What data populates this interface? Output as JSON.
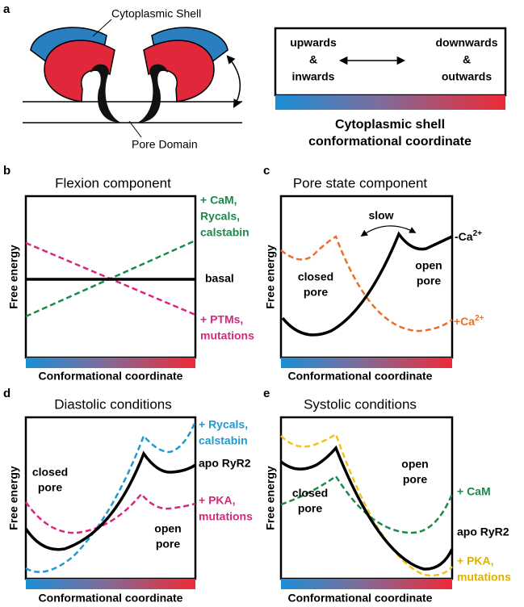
{
  "panel_a": {
    "label": "a",
    "shell_label": "Cytoplasmic Shell",
    "pore_label": "Pore Domain",
    "left_state": [
      "upwards",
      "&",
      "inwards"
    ],
    "right_state": [
      "downwards",
      "&",
      "outwards"
    ],
    "caption": [
      "Cytoplasmic shell",
      "conformational coordinate"
    ]
  },
  "panel_b": {
    "label": "b",
    "title": "Flexion component",
    "y_label": "Free energy",
    "x_label": "Conformational coordinate",
    "plus_label": [
      "+ CaM,",
      "Rycals,",
      "calstabin"
    ],
    "basal_label": "basal",
    "minus_label": [
      "+ PTMs,",
      "mutations"
    ]
  },
  "panel_c": {
    "label": "c",
    "title": "Pore state component",
    "y_label": "Free energy",
    "x_label": "Conformational coordinate",
    "slow_label": "slow",
    "closed_label": [
      "closed",
      "pore"
    ],
    "open_label": [
      "open",
      "pore"
    ],
    "minus_ca": {
      "text": "-Ca",
      "sup": "2+"
    },
    "plus_ca": {
      "text": "+Ca",
      "sup": "2+"
    }
  },
  "panel_d": {
    "label": "d",
    "title": "Diastolic conditions",
    "y_label": "Free energy",
    "x_label": "Conformational coordinate",
    "closed_label": [
      "closed",
      "pore"
    ],
    "open_label": [
      "open",
      "pore"
    ],
    "rycals_label": [
      "+ Rycals,",
      "calstabin"
    ],
    "apo_label": "apo RyR2",
    "pka_label": [
      "+ PKA,",
      "mutations"
    ]
  },
  "panel_e": {
    "label": "e",
    "title": "Systolic conditions",
    "y_label": "Free energy",
    "x_label": "Conformational coordinate",
    "closed_label": [
      "closed",
      "pore"
    ],
    "open_label": [
      "open",
      "pore"
    ],
    "cam_label": "+ CaM",
    "apo_label": "apo RyR2",
    "pka_label": [
      "+ PKA,",
      "mutations"
    ]
  }
}
